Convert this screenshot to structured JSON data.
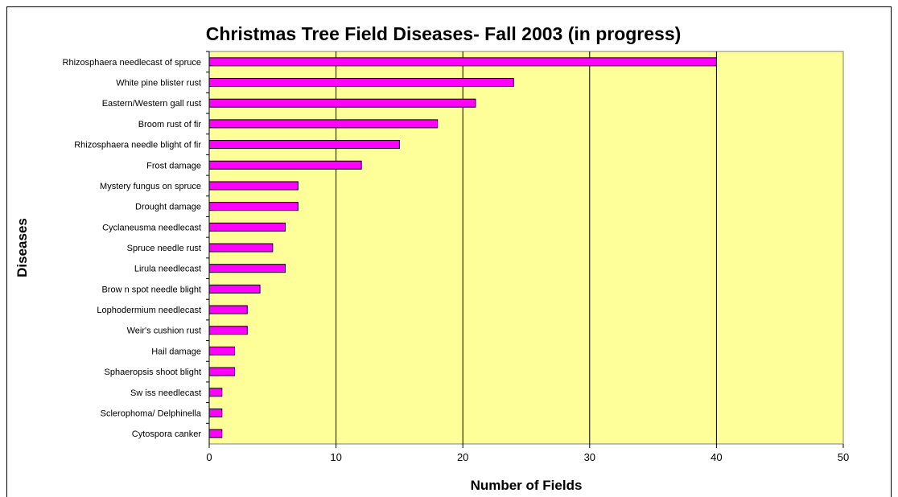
{
  "chart_data": {
    "type": "bar",
    "orientation": "horizontal",
    "title": "Christmas Tree Field Diseases- Fall 2003 (in progress)",
    "xlabel": "Number of Fields",
    "ylabel": "Diseases",
    "xlim": [
      0,
      50
    ],
    "xticks": [
      "0",
      "10",
      "20",
      "30",
      "40",
      "50"
    ],
    "grid": "vertical",
    "legend": "none",
    "colors": {
      "bar": "#ff00ff",
      "plot_background": "#ffff99",
      "gridline": "#000000"
    },
    "categories": [
      "Rhizosphaera needlecast of spruce",
      "White pine blister rust",
      "Eastern/Western gall rust",
      "Broom rust of fir",
      "Rhizosphaera needle blight of fir",
      "Frost damage",
      "Mystery fungus on spruce",
      "Drought damage",
      "Cyclaneusma needlecast",
      "Spruce needle rust",
      "Lirula needlecast",
      "Brow n spot needle blight",
      "Lophodermium needlecast",
      "Weir's cushion rust",
      "Hail damage",
      "Sphaeropsis shoot blight",
      "Sw iss needlecast",
      "Sclerophoma/ Delphinella",
      "Cytospora canker"
    ],
    "values": [
      40,
      24,
      21,
      18,
      15,
      12,
      7,
      7,
      6,
      5,
      6,
      4,
      3,
      3,
      2,
      2,
      1,
      1,
      1
    ]
  }
}
